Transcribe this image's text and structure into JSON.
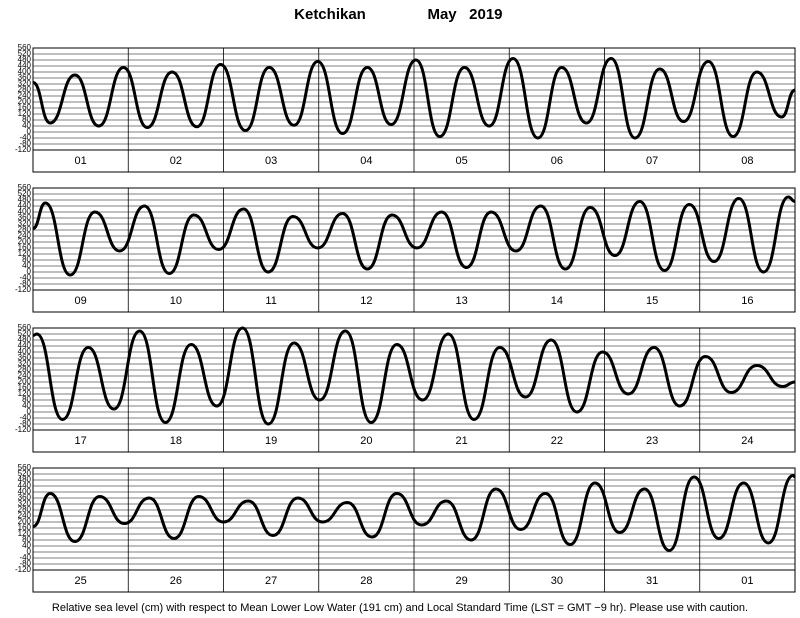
{
  "chart_data": [
    {
      "type": "line",
      "title": "Ketchikan",
      "subtitle": "May   2019",
      "categories": [
        "01",
        "02",
        "03",
        "04",
        "05",
        "06",
        "07",
        "08"
      ],
      "xlim": [
        0,
        8
      ],
      "ylim": [
        -120,
        560
      ],
      "yticks": [
        -120,
        -80,
        -40,
        0,
        40,
        80,
        120,
        160,
        200,
        240,
        280,
        320,
        360,
        400,
        440,
        480,
        520,
        560
      ],
      "grid": true,
      "x": [
        0,
        0.18,
        0.44,
        0.69,
        0.95,
        1.2,
        1.46,
        1.72,
        1.97,
        2.23,
        2.48,
        2.74,
        2.99,
        3.25,
        3.51,
        3.76,
        4.02,
        4.27,
        4.53,
        4.79,
        5.04,
        5.3,
        5.55,
        5.81,
        6.07,
        6.32,
        6.58,
        6.83,
        7.09,
        7.35,
        7.6,
        7.86,
        8
      ],
      "series": [
        {
          "color": "#000000",
          "values": [
            330,
            60,
            380,
            40,
            430,
            30,
            400,
            35,
            450,
            10,
            430,
            45,
            470,
            -10,
            430,
            50,
            480,
            -30,
            430,
            40,
            490,
            -40,
            430,
            60,
            490,
            -40,
            420,
            70,
            470,
            -30,
            400,
            100,
            280
          ]
        }
      ]
    },
    {
      "type": "line",
      "categories": [
        "09",
        "10",
        "11",
        "12",
        "13",
        "14",
        "15",
        "16"
      ],
      "xlim": [
        0,
        8
      ],
      "ylim": [
        -120,
        560
      ],
      "yticks": [
        -120,
        -80,
        -40,
        0,
        40,
        80,
        120,
        160,
        200,
        240,
        280,
        320,
        360,
        400,
        440,
        480,
        520,
        560
      ],
      "grid": true,
      "x": [
        0,
        0.13,
        0.39,
        0.65,
        0.91,
        1.17,
        1.43,
        1.69,
        1.95,
        2.21,
        2.47,
        2.73,
        2.99,
        3.25,
        3.51,
        3.77,
        4.03,
        4.29,
        4.55,
        4.81,
        5.07,
        5.33,
        5.59,
        5.85,
        6.11,
        6.37,
        6.63,
        6.89,
        7.15,
        7.41,
        7.67,
        7.93,
        8
      ],
      "series": [
        {
          "color": "#000000",
          "values": [
            290,
            460,
            -20,
            400,
            140,
            440,
            -10,
            380,
            150,
            420,
            0,
            370,
            160,
            390,
            20,
            380,
            160,
            400,
            30,
            400,
            140,
            440,
            20,
            430,
            110,
            470,
            10,
            450,
            70,
            490,
            0,
            500,
            470
          ]
        }
      ]
    },
    {
      "type": "line",
      "categories": [
        "17",
        "18",
        "19",
        "20",
        "21",
        "22",
        "23",
        "24"
      ],
      "xlim": [
        0,
        8
      ],
      "ylim": [
        -120,
        560
      ],
      "yticks": [
        -120,
        -80,
        -40,
        0,
        40,
        80,
        120,
        160,
        200,
        240,
        280,
        320,
        360,
        400,
        440,
        480,
        520,
        560
      ],
      "grid": true,
      "x": [
        0,
        0.04,
        0.31,
        0.58,
        0.85,
        1.12,
        1.39,
        1.66,
        1.93,
        2.2,
        2.47,
        2.74,
        3.01,
        3.28,
        3.55,
        3.82,
        4.09,
        4.36,
        4.63,
        4.9,
        5.17,
        5.44,
        5.71,
        5.98,
        6.25,
        6.52,
        6.79,
        7.06,
        7.33,
        7.6,
        7.87,
        8
      ],
      "series": [
        {
          "color": "#000000",
          "values": [
            510,
            520,
            -50,
            430,
            20,
            540,
            -70,
            450,
            40,
            560,
            -80,
            460,
            80,
            540,
            -70,
            450,
            80,
            520,
            -50,
            430,
            100,
            480,
            0,
            400,
            120,
            430,
            40,
            370,
            130,
            310,
            170,
            200
          ]
        }
      ]
    },
    {
      "type": "line",
      "categories": [
        "25",
        "26",
        "27",
        "28",
        "29",
        "30",
        "31",
        "01"
      ],
      "xlim": [
        0,
        8
      ],
      "ylim": [
        -120,
        560
      ],
      "yticks": [
        -120,
        -80,
        -40,
        0,
        40,
        80,
        120,
        160,
        200,
        240,
        280,
        320,
        360,
        400,
        440,
        480,
        520,
        560
      ],
      "grid": true,
      "caption": "Relative sea level (cm) with respect to Mean Lower Low Water (191 cm) and Local Standard Time (LST = GMT −9 hr). Please use with caution.",
      "x": [
        0,
        0.18,
        0.44,
        0.7,
        0.96,
        1.22,
        1.48,
        1.74,
        2,
        2.26,
        2.52,
        2.78,
        3.04,
        3.3,
        3.56,
        3.82,
        4.08,
        4.34,
        4.6,
        4.86,
        5.12,
        5.38,
        5.64,
        5.9,
        6.16,
        6.42,
        6.68,
        6.94,
        7.2,
        7.46,
        7.72,
        7.98,
        8
      ],
      "series": [
        {
          "color": "#000000",
          "values": [
            170,
            390,
            70,
            370,
            190,
            360,
            90,
            370,
            200,
            340,
            110,
            360,
            200,
            330,
            100,
            390,
            180,
            340,
            80,
            420,
            150,
            390,
            50,
            460,
            130,
            420,
            10,
            500,
            90,
            460,
            60,
            510,
            500
          ]
        }
      ]
    }
  ]
}
